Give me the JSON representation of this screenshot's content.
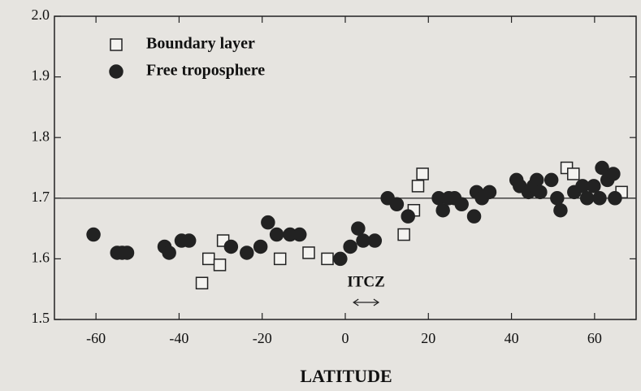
{
  "chart_data": {
    "type": "scatter",
    "xlabel": "LATITUDE",
    "xlim": [
      -70,
      70
    ],
    "xticks": [
      -60,
      -40,
      -20,
      0,
      20,
      40,
      60
    ],
    "ylim": [
      1.5,
      2.0
    ],
    "yticks": [
      1.5,
      1.6,
      1.7,
      1.8,
      1.9,
      {
        "value": 2.0,
        "label": "2.0"
      }
    ],
    "hline": 1.7,
    "legend": "upper left",
    "annotation": {
      "text": "ITCZ",
      "x_range": [
        2,
        8
      ]
    },
    "series": [
      {
        "name": "Boundary layer",
        "color": "#222222",
        "marker": "square",
        "filled": false,
        "x": [
          -34.5,
          -32.9,
          -30.2,
          -29.4,
          -15.7,
          -8.8,
          -4.3,
          14.1,
          16.5,
          17.5,
          18.6,
          53.3,
          54.9,
          66.5
        ],
        "values": [
          1.56,
          1.6,
          1.59,
          1.63,
          1.6,
          1.61,
          1.6,
          1.64,
          1.68,
          1.72,
          1.74,
          1.75,
          1.74,
          1.71
        ]
      },
      {
        "name": "Free troposphere",
        "color": "#222222",
        "marker": "circle",
        "filled": true,
        "x": [
          -60.6,
          -54.9,
          -53.7,
          -52.5,
          -43.5,
          -42.4,
          -39.4,
          -37.6,
          -27.5,
          -23.7,
          -20.4,
          -18.6,
          -16.5,
          -13.3,
          -11.0,
          -1.2,
          1.2,
          3.1,
          4.3,
          7.1,
          10.2,
          12.4,
          15.1,
          22.5,
          23.5,
          24.9,
          26.3,
          28.0,
          31.0,
          31.6,
          32.9,
          34.7,
          41.2,
          42.0,
          44.1,
          45.3,
          46.1,
          46.9,
          49.6,
          51.0,
          51.8,
          55.1,
          57.1,
          58.2,
          59.8,
          61.2,
          61.8,
          63.1,
          64.5,
          64.9
        ],
        "values": [
          1.64,
          1.61,
          1.61,
          1.61,
          1.62,
          1.61,
          1.63,
          1.63,
          1.62,
          1.61,
          1.62,
          1.66,
          1.64,
          1.64,
          1.64,
          1.6,
          1.62,
          1.65,
          1.63,
          1.63,
          1.7,
          1.69,
          1.67,
          1.7,
          1.68,
          1.7,
          1.7,
          1.69,
          1.67,
          1.71,
          1.7,
          1.71,
          1.73,
          1.72,
          1.71,
          1.72,
          1.73,
          1.71,
          1.73,
          1.7,
          1.68,
          1.71,
          1.72,
          1.7,
          1.72,
          1.7,
          1.75,
          1.73,
          1.74,
          1.7
        ]
      }
    ]
  }
}
